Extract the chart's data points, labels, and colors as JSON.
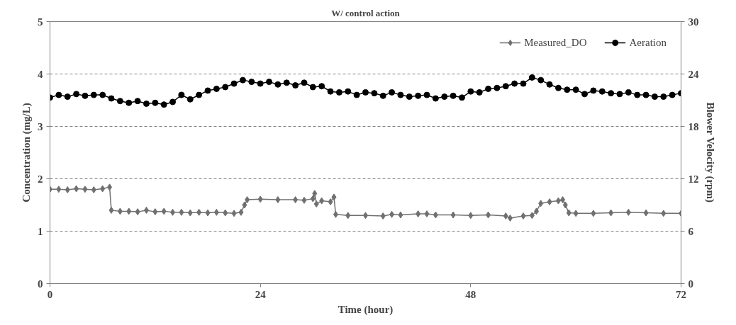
{
  "chart_data": {
    "type": "line",
    "title": "W/ control action",
    "xlabel": "Time (hour)",
    "ylabel": "Concentration (mg/L)",
    "y2label": "Blower Velocity (rpm)",
    "xlim": [
      0,
      72
    ],
    "xticks": [
      0,
      24,
      48,
      72
    ],
    "ylim": [
      0,
      5
    ],
    "yticks": [
      0,
      1,
      2,
      3,
      4,
      5
    ],
    "y2lim": [
      0,
      30
    ],
    "y2ticks": [
      0,
      6,
      12,
      18,
      24,
      30
    ],
    "grid": "y",
    "legend": "top right",
    "line_style": "solid",
    "series": [
      {
        "name": "Measured_DO",
        "color": "#707070",
        "marker": "diamond",
        "x": [
          0,
          1,
          2,
          3,
          4,
          5,
          6,
          6.8,
          7,
          8,
          9,
          10,
          11,
          12,
          13,
          14,
          15,
          16,
          17,
          18,
          19,
          20,
          21,
          21.8,
          22.2,
          22.5,
          24,
          26,
          28,
          29,
          30,
          30.2,
          30.4,
          31,
          32,
          32.4,
          32.6,
          34,
          36,
          38,
          39,
          40,
          42,
          43,
          44,
          46,
          48,
          50,
          52,
          52.5,
          54,
          55,
          55.5,
          56,
          57,
          58,
          58.5,
          58.8,
          59.2,
          60,
          62,
          64,
          66,
          68,
          70,
          72
        ],
        "values": [
          1.8,
          1.8,
          1.79,
          1.81,
          1.8,
          1.79,
          1.81,
          1.84,
          1.4,
          1.38,
          1.38,
          1.37,
          1.4,
          1.37,
          1.38,
          1.36,
          1.36,
          1.35,
          1.36,
          1.35,
          1.36,
          1.35,
          1.34,
          1.36,
          1.5,
          1.6,
          1.61,
          1.6,
          1.6,
          1.59,
          1.62,
          1.72,
          1.52,
          1.58,
          1.56,
          1.65,
          1.32,
          1.3,
          1.3,
          1.29,
          1.32,
          1.31,
          1.33,
          1.33,
          1.31,
          1.31,
          1.3,
          1.31,
          1.29,
          1.25,
          1.29,
          1.3,
          1.38,
          1.53,
          1.56,
          1.58,
          1.6,
          1.5,
          1.35,
          1.34,
          1.34,
          1.35,
          1.36,
          1.35,
          1.34,
          1.34
        ]
      },
      {
        "name": "Aeration",
        "color": "#000000",
        "marker": "circle",
        "axis": "y2",
        "x": [
          0,
          1,
          2,
          3,
          4,
          5,
          6,
          7,
          8,
          9,
          10,
          11,
          12,
          13,
          14,
          15,
          16,
          17,
          18,
          19,
          20,
          21,
          22,
          23,
          24,
          25,
          26,
          27,
          28,
          29,
          30,
          31,
          32,
          33,
          34,
          35,
          36,
          37,
          38,
          39,
          40,
          41,
          42,
          43,
          44,
          45,
          46,
          47,
          48,
          49,
          50,
          51,
          52,
          53,
          54,
          55,
          56,
          57,
          58,
          59,
          60,
          61,
          62,
          63,
          64,
          65,
          66,
          67,
          68,
          69,
          70,
          71,
          72
        ],
        "values": [
          21.3,
          21.6,
          21.4,
          21.7,
          21.5,
          21.6,
          21.6,
          21.2,
          20.9,
          20.7,
          20.9,
          20.6,
          20.7,
          20.5,
          20.8,
          21.6,
          21.1,
          21.6,
          22.1,
          22.3,
          22.5,
          22.9,
          23.3,
          23.1,
          22.9,
          23.1,
          22.8,
          23.0,
          22.7,
          23.0,
          22.5,
          22.6,
          22.0,
          21.9,
          22.0,
          21.6,
          21.9,
          21.8,
          21.5,
          21.9,
          21.6,
          21.4,
          21.5,
          21.6,
          21.2,
          21.4,
          21.5,
          21.3,
          22.0,
          21.9,
          22.3,
          22.4,
          22.6,
          22.9,
          22.9,
          23.6,
          23.3,
          22.8,
          22.4,
          22.2,
          22.2,
          21.7,
          22.1,
          22.0,
          21.8,
          21.7,
          21.9,
          21.6,
          21.6,
          21.4,
          21.4,
          21.6,
          21.8
        ]
      }
    ]
  }
}
